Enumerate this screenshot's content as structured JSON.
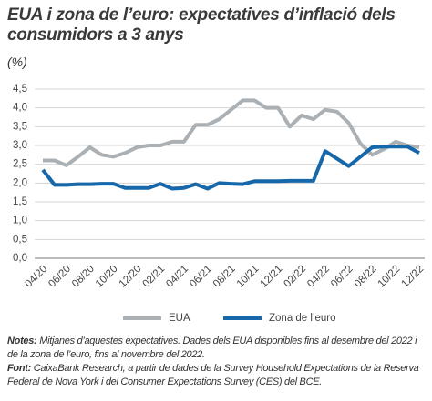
{
  "chart_data": {
    "type": "line",
    "title": "EUA i zona de l’euro: expectatives d’inflació dels consumidors a 3 anys",
    "subtitle": "(%)",
    "categories": [
      "04/20",
      null,
      "06/20",
      null,
      "08/20",
      null,
      "10/20",
      null,
      "12/20",
      null,
      "02/21",
      null,
      "04/21",
      null,
      "06/21",
      null,
      "08/21",
      null,
      "10/21",
      null,
      "12/21",
      null,
      "02/22",
      null,
      "04/22",
      null,
      "06/22",
      null,
      "08/22",
      null,
      "10/22",
      null,
      "12/22"
    ],
    "series": [
      {
        "name": "EUA",
        "color": "#aab0b4",
        "values": [
          2.6,
          2.6,
          2.47,
          2.7,
          2.95,
          2.75,
          2.7,
          2.8,
          2.95,
          3.0,
          3.0,
          3.1,
          3.1,
          3.55,
          3.55,
          3.7,
          3.95,
          4.2,
          4.2,
          4.0,
          4.0,
          3.5,
          3.8,
          3.7,
          3.95,
          3.9,
          3.6,
          3.05,
          2.75,
          2.9,
          3.1,
          3.0,
          2.95
        ]
      },
      {
        "name": "Zona de l’euro",
        "color": "#1668aa",
        "values": [
          2.35,
          1.95,
          1.95,
          1.97,
          1.97,
          1.98,
          1.98,
          1.87,
          1.87,
          1.87,
          1.98,
          1.85,
          1.87,
          1.97,
          1.85,
          2.0,
          1.98,
          1.97,
          2.05,
          2.05,
          2.05,
          2.06,
          2.06,
          2.06,
          2.85,
          2.65,
          2.45,
          2.7,
          2.95,
          2.97,
          2.97,
          2.97,
          2.8
        ]
      }
    ],
    "ylim": [
      0,
      4.5
    ],
    "yticks": [
      {
        "value": 0,
        "label": "0,0"
      },
      {
        "value": 0.5,
        "label": "0,5"
      },
      {
        "value": 1,
        "label": "1,0"
      },
      {
        "value": 1.5,
        "label": "1,5"
      },
      {
        "value": 2,
        "label": "2,0"
      },
      {
        "value": 2.5,
        "label": "2,5"
      },
      {
        "value": 3,
        "label": "3,0"
      },
      {
        "value": 3.5,
        "label": "3,5"
      },
      {
        "value": 4,
        "label": "4,0"
      },
      {
        "value": 4.5,
        "label": "4,5"
      }
    ],
    "grid": true
  },
  "notes": {
    "label": "Notes:",
    "text": "Mitjanes d’aquestes expectatives. Dades dels EUA disponibles fins al desembre del 2022 i de la zona de l’euro, fins al novembre del 2022."
  },
  "source": {
    "label": "Font:",
    "text": "CaixaBank Research, a partir de dades de la Survey Household Expectations de la Reserva Federal de Nova York i del Consumer Expectations Survey (CES) del BCE."
  }
}
